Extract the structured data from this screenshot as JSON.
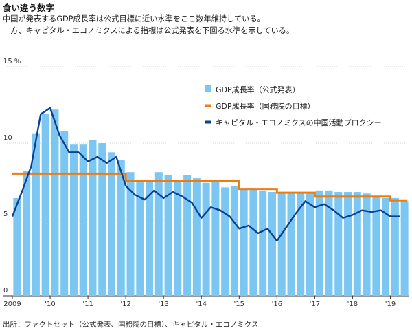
{
  "title": "食い違う数字",
  "subtitle": [
    "中国が発表するGDP成長率は公式目標に近い水準をここ数年維持している。",
    "一方、キャピタル・エコノミクスによる指標は公式発表を下回る水準を示している。"
  ],
  "source": "出所：ファクトセット（公式発表、国務院の目標）、キャピタル・エコノミクス",
  "chart_data": {
    "type": "bar",
    "y_unit": "%",
    "ylim": [
      0,
      15
    ],
    "yticks": [
      {
        "v": 0,
        "label": "0"
      },
      {
        "v": 5,
        "label": "5"
      },
      {
        "v": 10,
        "label": "10"
      },
      {
        "v": 15,
        "label": "15 %"
      }
    ],
    "xlim": [
      2009.0,
      2019.5
    ],
    "xticks": [
      {
        "v": 2009,
        "label": "2009"
      },
      {
        "v": 2010,
        "label": "'10"
      },
      {
        "v": 2011,
        "label": "'11"
      },
      {
        "v": 2012,
        "label": "'12"
      },
      {
        "v": 2013,
        "label": "'13"
      },
      {
        "v": 2014,
        "label": "'14"
      },
      {
        "v": 2015,
        "label": "'15"
      },
      {
        "v": 2016,
        "label": "'16"
      },
      {
        "v": 2017,
        "label": "'17"
      },
      {
        "v": 2018,
        "label": "'18"
      },
      {
        "v": 2019,
        "label": "'19"
      }
    ],
    "grid": true,
    "legend_position": "top-right",
    "series": [
      {
        "name": "GDP成長率（公式発表）",
        "kind": "bar",
        "color": "#7cc7f1",
        "x": [
          "2009Q1",
          "2009Q2",
          "2009Q3",
          "2009Q4",
          "2010Q1",
          "2010Q2",
          "2010Q3",
          "2010Q4",
          "2011Q1",
          "2011Q2",
          "2011Q3",
          "2011Q4",
          "2012Q1",
          "2012Q2",
          "2012Q3",
          "2012Q4",
          "2013Q1",
          "2013Q2",
          "2013Q3",
          "2013Q4",
          "2014Q1",
          "2014Q2",
          "2014Q3",
          "2014Q4",
          "2015Q1",
          "2015Q2",
          "2015Q3",
          "2015Q4",
          "2016Q1",
          "2016Q2",
          "2016Q3",
          "2016Q4",
          "2017Q1",
          "2017Q2",
          "2017Q3",
          "2017Q4",
          "2018Q1",
          "2018Q2",
          "2018Q3",
          "2018Q4",
          "2019Q1",
          "2019Q2"
        ],
        "values": [
          6.4,
          8.2,
          10.6,
          11.9,
          12.2,
          10.8,
          9.9,
          9.9,
          10.2,
          10.0,
          9.4,
          8.9,
          8.1,
          7.6,
          7.5,
          8.1,
          7.9,
          7.6,
          7.9,
          7.7,
          7.4,
          7.5,
          7.1,
          7.2,
          7.0,
          7.0,
          6.9,
          6.8,
          6.7,
          6.7,
          6.7,
          6.8,
          6.9,
          6.9,
          6.8,
          6.8,
          6.8,
          6.7,
          6.5,
          6.4,
          6.4,
          6.2
        ]
      },
      {
        "name": "GDP成長率（国務院の目標）",
        "kind": "step",
        "color": "#f07c10",
        "values": [
          {
            "x": 2009.0,
            "y": 8.0
          },
          {
            "x": 2012.0,
            "y": 8.0
          },
          {
            "x": 2012.0,
            "y": 7.5
          },
          {
            "x": 2015.0,
            "y": 7.5
          },
          {
            "x": 2015.0,
            "y": 7.0
          },
          {
            "x": 2016.0,
            "y": 7.0
          },
          {
            "x": 2016.0,
            "y": 6.75
          },
          {
            "x": 2017.0,
            "y": 6.75
          },
          {
            "x": 2017.0,
            "y": 6.5
          },
          {
            "x": 2019.0,
            "y": 6.5
          },
          {
            "x": 2019.0,
            "y": 6.25
          },
          {
            "x": 2019.45,
            "y": 6.25
          }
        ]
      },
      {
        "name": "キャピタル・エコノミクスの中国活動プロクシー",
        "kind": "line",
        "color": "#0b3f94",
        "values": [
          {
            "x": 2009.0,
            "y": 5.2
          },
          {
            "x": 2009.25,
            "y": 6.8
          },
          {
            "x": 2009.5,
            "y": 8.5
          },
          {
            "x": 2009.75,
            "y": 11.9
          },
          {
            "x": 2010.0,
            "y": 12.3
          },
          {
            "x": 2010.25,
            "y": 10.5
          },
          {
            "x": 2010.5,
            "y": 9.4
          },
          {
            "x": 2010.75,
            "y": 9.4
          },
          {
            "x": 2011.0,
            "y": 8.8
          },
          {
            "x": 2011.25,
            "y": 9.1
          },
          {
            "x": 2011.5,
            "y": 8.7
          },
          {
            "x": 2011.75,
            "y": 9.1
          },
          {
            "x": 2012.0,
            "y": 7.2
          },
          {
            "x": 2012.25,
            "y": 6.6
          },
          {
            "x": 2012.5,
            "y": 6.3
          },
          {
            "x": 2012.75,
            "y": 6.9
          },
          {
            "x": 2013.0,
            "y": 6.4
          },
          {
            "x": 2013.25,
            "y": 6.8
          },
          {
            "x": 2013.5,
            "y": 6.5
          },
          {
            "x": 2013.75,
            "y": 6.1
          },
          {
            "x": 2014.0,
            "y": 5.1
          },
          {
            "x": 2014.25,
            "y": 5.8
          },
          {
            "x": 2014.5,
            "y": 5.6
          },
          {
            "x": 2014.75,
            "y": 5.2
          },
          {
            "x": 2015.0,
            "y": 4.4
          },
          {
            "x": 2015.25,
            "y": 4.6
          },
          {
            "x": 2015.5,
            "y": 4.1
          },
          {
            "x": 2015.75,
            "y": 4.4
          },
          {
            "x": 2016.0,
            "y": 3.6
          },
          {
            "x": 2016.25,
            "y": 4.5
          },
          {
            "x": 2016.5,
            "y": 5.4
          },
          {
            "x": 2016.75,
            "y": 6.2
          },
          {
            "x": 2017.0,
            "y": 5.8
          },
          {
            "x": 2017.25,
            "y": 6.0
          },
          {
            "x": 2017.5,
            "y": 5.6
          },
          {
            "x": 2017.75,
            "y": 5.1
          },
          {
            "x": 2018.0,
            "y": 5.3
          },
          {
            "x": 2018.25,
            "y": 5.6
          },
          {
            "x": 2018.5,
            "y": 5.5
          },
          {
            "x": 2018.75,
            "y": 5.6
          },
          {
            "x": 2019.0,
            "y": 5.2
          },
          {
            "x": 2019.25,
            "y": 5.2
          }
        ]
      }
    ]
  }
}
